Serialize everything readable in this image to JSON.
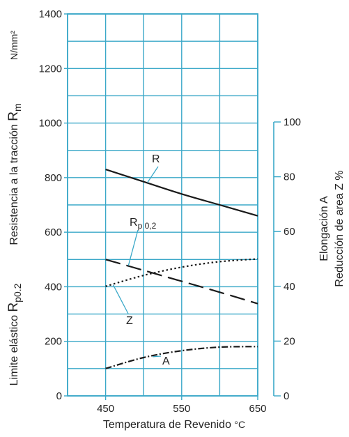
{
  "chart_data": {
    "type": "line",
    "x": [
      450,
      500,
      550,
      600,
      650
    ],
    "xlabel": "Temperatura de Revenido",
    "xunit": "°C",
    "xlim": [
      400,
      650
    ],
    "xticks": [
      450,
      550,
      650
    ],
    "ylim": [
      0,
      1400
    ],
    "yticks": [
      0,
      200,
      400,
      600,
      800,
      1000,
      1200,
      1400
    ],
    "yunit": "N/mm²",
    "ylabel_left_1": "Resistencia a la tracción",
    "ylabel_left_1_sym": "R",
    "ylabel_left_1_sub": "m",
    "ylabel_left_2": "Limite elástico",
    "ylabel_left_2_sym": "R",
    "ylabel_left_2_sub": "p0.2",
    "y2lim": [
      0,
      100
    ],
    "y2ticks": [
      0,
      20,
      40,
      60,
      80,
      100
    ],
    "y2label_1": "Elongación A",
    "y2label_2": "Reducción de area Z %",
    "grid": true,
    "colors": {
      "grid": "#3aa8c8",
      "axis": "#3aa8c8",
      "series": "#1a1a1a"
    },
    "series": [
      {
        "name": "R",
        "axis": "left",
        "style": "solid",
        "x": [
          450,
          500,
          550,
          600,
          650
        ],
        "values": [
          830,
          785,
          740,
          700,
          660
        ]
      },
      {
        "name": "Rp 0,2",
        "label_base": "R",
        "label_sub": "p 0,2",
        "axis": "left",
        "style": "longdash",
        "x": [
          450,
          500,
          550,
          600,
          650
        ],
        "values": [
          500,
          460,
          420,
          380,
          338
        ]
      },
      {
        "name": "Z",
        "axis": "right",
        "style": "dotted",
        "x": [
          450,
          500,
          550,
          600,
          650
        ],
        "values": [
          40,
          44,
          47,
          49,
          50
        ]
      },
      {
        "name": "A",
        "axis": "right",
        "style": "dashdot",
        "x": [
          450,
          500,
          550,
          600,
          650
        ],
        "values": [
          10,
          14,
          16.5,
          17.8,
          18
        ]
      }
    ]
  }
}
